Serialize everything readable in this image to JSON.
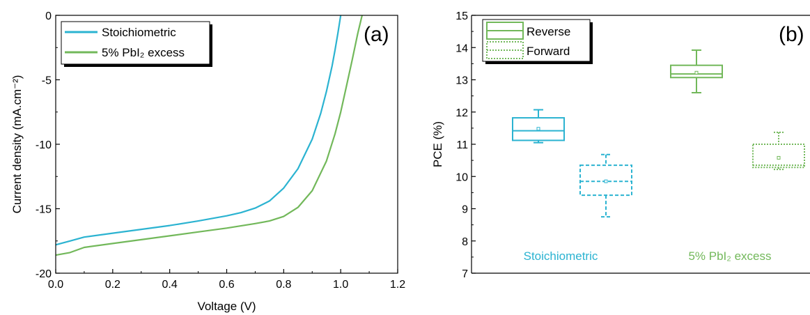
{
  "colors": {
    "stoich": "#2bb3d1",
    "excess": "#72b85a"
  },
  "chart_data": [
    {
      "type": "line",
      "panel_label": "(a)",
      "xlabel": "Voltage (V)",
      "ylabel": "Current density (mA.cm⁻²)",
      "xlim": [
        0.0,
        1.2
      ],
      "ylim": [
        -20,
        0
      ],
      "xticks": [
        "0.0",
        "0.2",
        "0.4",
        "0.6",
        "0.8",
        "1.0",
        "1.2"
      ],
      "yticks": [
        "0",
        "-5",
        "-10",
        "-15",
        "-20"
      ],
      "legend_placement": "top-left",
      "series": [
        {
          "name": "Stoichiometric",
          "x": [
            0.0,
            0.05,
            0.1,
            0.2,
            0.3,
            0.4,
            0.5,
            0.6,
            0.65,
            0.7,
            0.75,
            0.8,
            0.85,
            0.9,
            0.93,
            0.95,
            0.97,
            0.98,
            0.99,
            1.0
          ],
          "y": [
            -17.8,
            -17.5,
            -17.2,
            -16.9,
            -16.6,
            -16.3,
            -15.95,
            -15.55,
            -15.3,
            -14.95,
            -14.4,
            -13.4,
            -11.9,
            -9.6,
            -7.6,
            -5.9,
            -3.9,
            -2.7,
            -1.4,
            0.0
          ]
        },
        {
          "name": "5% PbI₂ excess",
          "x": [
            0.0,
            0.05,
            0.1,
            0.2,
            0.3,
            0.4,
            0.5,
            0.6,
            0.7,
            0.75,
            0.8,
            0.85,
            0.9,
            0.95,
            0.98,
            1.0,
            1.02,
            1.04,
            1.06,
            1.075
          ],
          "y": [
            -18.6,
            -18.4,
            -18.0,
            -17.7,
            -17.4,
            -17.1,
            -16.8,
            -16.5,
            -16.15,
            -15.95,
            -15.6,
            -14.9,
            -13.6,
            -11.3,
            -9.2,
            -7.5,
            -5.5,
            -3.5,
            -1.4,
            0.0
          ]
        }
      ]
    },
    {
      "type": "box",
      "panel_label": "(b)",
      "ylabel": "PCE (%)",
      "ylim": [
        7,
        15
      ],
      "yticks": [
        "7",
        "8",
        "9",
        "10",
        "11",
        "12",
        "13",
        "14",
        "15"
      ],
      "categories": [
        "Stoichiometric",
        "5% PbI₂ excess"
      ],
      "legend": [
        "Reverse",
        "Forward"
      ],
      "legend_placement": "top-left",
      "boxes": [
        {
          "group": "Stoichiometric",
          "scan": "Reverse",
          "min": 11.05,
          "q1": 11.12,
          "median": 11.42,
          "mean": 11.48,
          "q3": 11.82,
          "max": 12.07
        },
        {
          "group": "Stoichiometric",
          "scan": "Forward",
          "min": 8.75,
          "q1": 9.42,
          "median": 9.85,
          "mean": 9.85,
          "q3": 10.35,
          "max": 10.68
        },
        {
          "group": "5% PbI₂ excess",
          "scan": "Reverse",
          "min": 12.6,
          "q1": 13.07,
          "median": 13.18,
          "mean": 13.22,
          "q3": 13.45,
          "max": 13.92
        },
        {
          "group": "5% PbI₂ excess",
          "scan": "Forward",
          "min": 10.22,
          "q1": 10.28,
          "median": 10.35,
          "mean": 10.58,
          "q3": 11.0,
          "max": 11.37
        }
      ]
    }
  ]
}
